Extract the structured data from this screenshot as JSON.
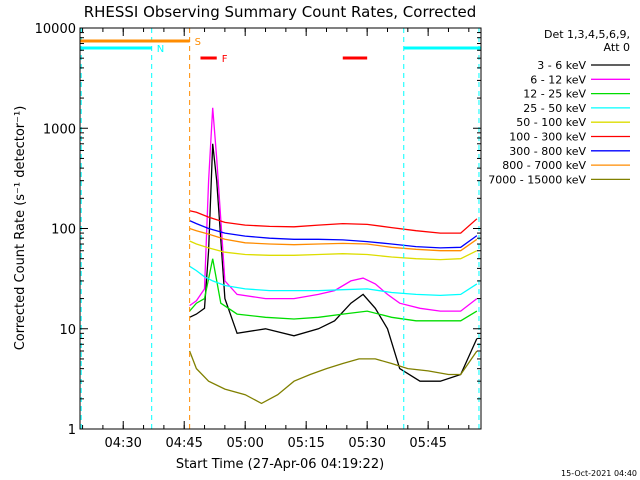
{
  "chart_data": {
    "type": "line",
    "title": "RHESSI Observing Summary Count Rates, Corrected",
    "xlabel": "Start Time (27-Apr-06 04:19:22)",
    "ylabel": "Corrected Count Rate (s⁻¹ detector⁻¹)",
    "y_scale": "log",
    "ylim": [
      1,
      10000
    ],
    "xlim": [
      "04:19:22",
      "05:58:00"
    ],
    "x_ticks": [
      "04:30",
      "04:45",
      "05:00",
      "05:15",
      "05:30",
      "05:45"
    ],
    "y_ticks": [
      "1",
      "10",
      "100",
      "1000",
      "10000"
    ],
    "legend_header": [
      "Det 1,3,4,5,6,9,",
      "Att 0"
    ],
    "grid": false,
    "legend_position": "right",
    "series": [
      {
        "name": "3 - 6 keV",
        "color": "#000000",
        "x": [
          "04:46:20",
          "04:48",
          "04:50",
          "04:51",
          "04:52",
          "04:53",
          "04:55",
          "04:58",
          "05:05",
          "05:12",
          "05:18",
          "05:22",
          "05:26",
          "05:29",
          "05:32",
          "05:35",
          "05:38",
          "05:43",
          "05:48",
          "05:53",
          "05:57"
        ],
        "y": [
          13,
          14,
          16,
          60,
          700,
          300,
          20,
          9,
          10,
          8.5,
          10,
          12,
          18,
          22,
          16,
          10,
          4,
          3,
          3,
          3.5,
          8
        ]
      },
      {
        "name": "6 - 12 keV",
        "color": "#ff00ff",
        "x": [
          "04:46:20",
          "04:48",
          "04:50",
          "04:51",
          "04:52",
          "04:53",
          "04:55",
          "04:58",
          "05:05",
          "05:12",
          "05:18",
          "05:22",
          "05:26",
          "05:29",
          "05:32",
          "05:35",
          "05:38",
          "05:43",
          "05:48",
          "05:53",
          "05:57"
        ],
        "y": [
          17,
          19,
          25,
          300,
          1600,
          500,
          30,
          22,
          20,
          20,
          22,
          24,
          30,
          32,
          28,
          22,
          18,
          16,
          15,
          15,
          20
        ]
      },
      {
        "name": "12 - 25 keV",
        "color": "#00dd00",
        "x": [
          "04:46:20",
          "04:48",
          "04:50",
          "04:52",
          "04:54",
          "04:58",
          "05:05",
          "05:12",
          "05:18",
          "05:24",
          "05:30",
          "05:36",
          "05:42",
          "05:48",
          "05:53",
          "05:57"
        ],
        "y": [
          15,
          18,
          20,
          50,
          18,
          14,
          13,
          12.5,
          13,
          14,
          15,
          13,
          12,
          12,
          12,
          15
        ]
      },
      {
        "name": "25 - 50 keV",
        "color": "#00ffff",
        "x": [
          "04:46:20",
          "04:48",
          "04:50",
          "04:52",
          "04:55",
          "05:00",
          "05:06",
          "05:12",
          "05:18",
          "05:24",
          "05:30",
          "05:36",
          "05:42",
          "05:48",
          "05:53",
          "05:57"
        ],
        "y": [
          42,
          38,
          33,
          30,
          27,
          25,
          24,
          24,
          24,
          24.5,
          25,
          23,
          22,
          21.5,
          22,
          28
        ]
      },
      {
        "name": "50 - 100 keV",
        "color": "#dddd00",
        "x": [
          "04:46:20",
          "04:48",
          "04:51",
          "04:55",
          "05:00",
          "05:06",
          "05:12",
          "05:18",
          "05:24",
          "05:30",
          "05:36",
          "05:42",
          "05:48",
          "05:53",
          "05:57"
        ],
        "y": [
          75,
          70,
          64,
          58,
          55,
          54,
          54,
          55,
          56,
          55,
          52,
          50,
          49,
          50,
          60
        ]
      },
      {
        "name": "100 - 300 keV",
        "color": "#ff0000",
        "x": [
          "04:46:20",
          "04:48",
          "04:51",
          "04:55",
          "05:00",
          "05:06",
          "05:12",
          "05:18",
          "05:24",
          "05:30",
          "05:36",
          "05:42",
          "05:48",
          "05:53",
          "05:57"
        ],
        "y": [
          150,
          145,
          130,
          115,
          108,
          105,
          104,
          108,
          112,
          110,
          102,
          95,
          90,
          90,
          125
        ]
      },
      {
        "name": "300 - 800 keV",
        "color": "#0000ff",
        "x": [
          "04:46:20",
          "04:48",
          "04:51",
          "04:55",
          "05:00",
          "05:06",
          "05:12",
          "05:18",
          "05:24",
          "05:30",
          "05:36",
          "05:42",
          "05:48",
          "05:53",
          "05:57"
        ],
        "y": [
          120,
          112,
          100,
          90,
          84,
          80,
          78,
          78,
          77,
          74,
          70,
          66,
          64,
          65,
          85
        ]
      },
      {
        "name": "800 - 7000 keV",
        "color": "#ff8c00",
        "x": [
          "04:46:20",
          "04:48",
          "04:51",
          "04:55",
          "05:00",
          "05:06",
          "05:12",
          "05:18",
          "05:24",
          "05:30",
          "05:36",
          "05:42",
          "05:48",
          "05:53",
          "05:57"
        ],
        "y": [
          100,
          95,
          88,
          78,
          72,
          70,
          69,
          70,
          71,
          70,
          65,
          62,
          60,
          60,
          78
        ]
      },
      {
        "name": "7000 - 15000 keV",
        "color": "#808000",
        "x": [
          "04:46:20",
          "04:48",
          "04:51",
          "04:55",
          "05:00",
          "05:04",
          "05:08",
          "05:12",
          "05:16",
          "05:20",
          "05:24",
          "05:28",
          "05:32",
          "05:36",
          "05:40",
          "05:45",
          "05:50",
          "05:53",
          "05:57"
        ],
        "y": [
          6,
          4,
          3,
          2.5,
          2.2,
          1.8,
          2.2,
          3,
          3.5,
          4,
          4.5,
          5,
          5,
          4.5,
          4,
          3.8,
          3.5,
          3.5,
          6
        ]
      }
    ],
    "flag_bars": [
      {
        "label": "S",
        "color": "#ff8c00",
        "segments": [
          [
            "04:19:22",
            "04:46:20"
          ]
        ]
      },
      {
        "label": "N",
        "color": "#00ffff",
        "segments": [
          [
            "04:19:22",
            "04:37:00"
          ],
          [
            "05:39:00",
            "05:58:00"
          ]
        ]
      },
      {
        "label": "F",
        "color": "#ff0000",
        "segments": [
          [
            "04:49:00",
            "04:53:00"
          ],
          [
            "05:24:00",
            "05:30:00"
          ]
        ]
      }
    ],
    "vertical_markers": [
      {
        "color": "#00ffff",
        "x": [
          "04:19:40",
          "04:37:00",
          "05:39:00",
          "05:57:30"
        ]
      },
      {
        "color": "#ff8c00",
        "x": [
          "04:46:20"
        ]
      }
    ],
    "footer_date": "15-Oct-2021 04:40"
  }
}
